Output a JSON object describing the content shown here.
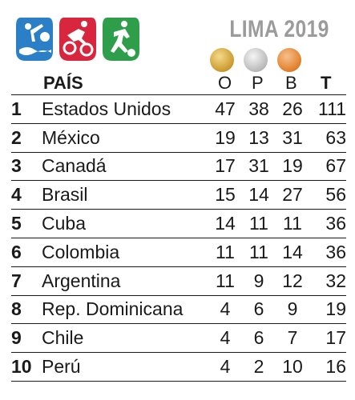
{
  "header": {
    "event_title": "LIMA 2019",
    "icons": [
      "water-sports-icon",
      "cycling-icon",
      "football-icon"
    ],
    "medals": [
      "gold-medal-icon",
      "silver-medal-icon",
      "bronze-medal-icon"
    ]
  },
  "columns": {
    "country": "PAÍS",
    "gold": "O",
    "silver": "P",
    "bronze": "B",
    "total": "T"
  },
  "rows": [
    {
      "rank": "1",
      "country": "Estados Unidos",
      "gold": "47",
      "silver": "38",
      "bronze": "26",
      "total": "111"
    },
    {
      "rank": "2",
      "country": "México",
      "gold": "19",
      "silver": "13",
      "bronze": "31",
      "total": "63"
    },
    {
      "rank": "3",
      "country": "Canadá",
      "gold": "17",
      "silver": "31",
      "bronze": "19",
      "total": "67"
    },
    {
      "rank": "4",
      "country": "Brasil",
      "gold": "15",
      "silver": "14",
      "bronze": "27",
      "total": "56"
    },
    {
      "rank": "5",
      "country": "Cuba",
      "gold": "14",
      "silver": "11",
      "bronze": "11",
      "total": "36"
    },
    {
      "rank": "6",
      "country": "Colombia",
      "gold": "11",
      "silver": "11",
      "bronze": "14",
      "total": "36"
    },
    {
      "rank": "7",
      "country": "Argentina",
      "gold": "11",
      "silver": "9",
      "bronze": "12",
      "total": "32"
    },
    {
      "rank": "8",
      "country": "Rep. Dominicana",
      "gold": "4",
      "silver": "6",
      "bronze": "9",
      "total": "19"
    },
    {
      "rank": "9",
      "country": "Chile",
      "gold": "4",
      "silver": "6",
      "bronze": "7",
      "total": "17"
    },
    {
      "rank": "10",
      "country": "Perú",
      "gold": "4",
      "silver": "2",
      "bronze": "10",
      "total": "16"
    }
  ],
  "colors": {
    "icon_blue": "#2a7fc6",
    "icon_red": "#d7263d",
    "icon_green": "#2e9e4a",
    "title_gray": "#9b9b9b"
  }
}
